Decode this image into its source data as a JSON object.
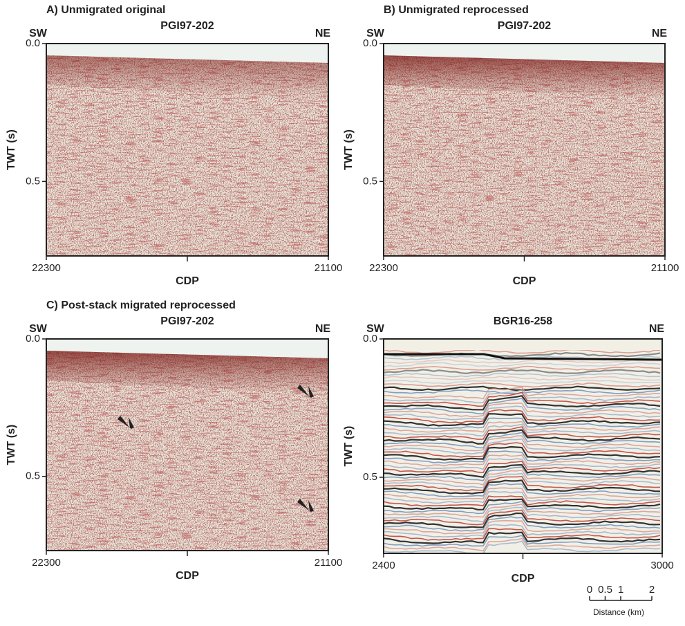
{
  "chart_data": [
    {
      "type": "seismic",
      "title": "A) Unmigrated original",
      "subtitle": "PGI97-202",
      "left_label": "SW",
      "right_label": "NE",
      "y_label": "TWT (s)",
      "x_label": "CDP",
      "xlim": [
        22300,
        21100
      ],
      "ylim": [
        0.77,
        0
      ],
      "xticks": [
        22300,
        21100
      ],
      "yticks": [
        {
          "value": 0,
          "label": "0.0"
        },
        {
          "value": 0.5,
          "label": "0.5"
        }
      ]
    },
    {
      "type": "seismic",
      "title": "B) Unmigrated reprocessed",
      "subtitle": "PGI97-202",
      "left_label": "SW",
      "right_label": "NE",
      "y_label": "TWT (s)",
      "x_label": "CDP",
      "xlim": [
        22300,
        21100
      ],
      "ylim": [
        0.77,
        0
      ],
      "xticks": [
        22300,
        21100
      ],
      "yticks": [
        {
          "value": 0,
          "label": "0.0"
        },
        {
          "value": 0.5,
          "label": "0.5"
        }
      ]
    },
    {
      "type": "seismic",
      "title": "C) Post-stack migrated reprocessed",
      "subtitle": "PGI97-202",
      "left_label": "SW",
      "right_label": "NE",
      "y_label": "TWT (s)",
      "x_label": "CDP",
      "xlim": [
        22300,
        21100
      ],
      "ylim": [
        0.77,
        0
      ],
      "xticks": [
        22300,
        21100
      ],
      "yticks": [
        {
          "value": 0,
          "label": "0.0"
        },
        {
          "value": 0.5,
          "label": "0.5"
        }
      ]
    },
    {
      "type": "seismic-color",
      "subtitle": "BGR16-258",
      "left_label": "SW",
      "right_label": "NE",
      "y_label": "TWT (s)",
      "x_label": "CDP",
      "xlim": [
        2400,
        3000
      ],
      "ylim": [
        0.775,
        0
      ],
      "xticks": [
        2400,
        3000
      ],
      "yticks": [
        {
          "value": 0,
          "label": "0.0"
        },
        {
          "value": 0.5,
          "label": "0.5"
        }
      ]
    }
  ],
  "scale_bar": {
    "ticks": [
      0,
      0.5,
      1,
      2
    ],
    "label": "Distance (km)"
  }
}
